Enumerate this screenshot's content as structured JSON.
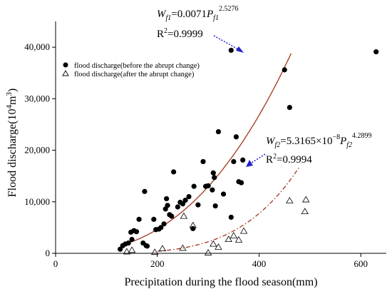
{
  "chart_data": {
    "type": "scatter",
    "xlabel": "Precipitation during the flood season(mm)",
    "ylabel": {
      "base": "Flood discharge(10",
      "exp1": "4",
      "mid": "m",
      "exp2": "3",
      "end": ")"
    },
    "xlim": [
      0,
      650
    ],
    "ylim": [
      0,
      45000
    ],
    "xticks": [
      0,
      200,
      400,
      600
    ],
    "yticks": [
      0,
      10000,
      20000,
      30000,
      40000
    ],
    "ytick_labels": [
      "0",
      "10,000",
      "20,000",
      "30,000",
      "40,000"
    ],
    "grid": false,
    "legend_position": "top-left",
    "series": [
      {
        "name": "flood discharge(before the abrupt change)",
        "marker": "filled-circle",
        "color": "#000000",
        "points": [
          [
            127,
            800
          ],
          [
            132,
            1500
          ],
          [
            137,
            1800
          ],
          [
            143,
            2000
          ],
          [
            148,
            4100
          ],
          [
            150,
            2700
          ],
          [
            154,
            4400
          ],
          [
            159,
            4200
          ],
          [
            164,
            6600
          ],
          [
            172,
            2000
          ],
          [
            175,
            12000
          ],
          [
            178,
            1500
          ],
          [
            180,
            1400
          ],
          [
            193,
            6600
          ],
          [
            197,
            4600
          ],
          [
            203,
            4700
          ],
          [
            207,
            5000
          ],
          [
            213,
            5700
          ],
          [
            216,
            8600
          ],
          [
            218,
            10600
          ],
          [
            220,
            9300
          ],
          [
            224,
            7500
          ],
          [
            228,
            7200
          ],
          [
            232,
            15800
          ],
          [
            240,
            9000
          ],
          [
            245,
            9900
          ],
          [
            250,
            9600
          ],
          [
            255,
            10300
          ],
          [
            262,
            11000
          ],
          [
            270,
            4800
          ],
          [
            272,
            13000
          ],
          [
            280,
            9400
          ],
          [
            290,
            17800
          ],
          [
            295,
            13000
          ],
          [
            300,
            13100
          ],
          [
            308,
            12300
          ],
          [
            310,
            15600
          ],
          [
            312,
            14700
          ],
          [
            314,
            9200
          ],
          [
            320,
            23600
          ],
          [
            330,
            11500
          ],
          [
            345,
            7000
          ],
          [
            350,
            17800
          ],
          [
            355,
            22600
          ],
          [
            360,
            13900
          ],
          [
            365,
            13700
          ],
          [
            368,
            18100
          ],
          [
            345,
            39400
          ],
          [
            450,
            35600
          ],
          [
            460,
            28300
          ],
          [
            630,
            39100
          ]
        ]
      },
      {
        "name": "flood discharge(after the abrupt change)",
        "marker": "open-triangle",
        "color": "#000000",
        "points": [
          [
            140,
            300
          ],
          [
            150,
            600
          ],
          [
            195,
            200
          ],
          [
            210,
            900
          ],
          [
            250,
            1000
          ],
          [
            252,
            7200
          ],
          [
            270,
            5400
          ],
          [
            300,
            100
          ],
          [
            310,
            1800
          ],
          [
            320,
            1200
          ],
          [
            340,
            2700
          ],
          [
            350,
            3400
          ],
          [
            360,
            2600
          ],
          [
            370,
            4300
          ],
          [
            460,
            10200
          ],
          [
            490,
            8100
          ],
          [
            492,
            10400
          ]
        ]
      }
    ],
    "fits": [
      {
        "label": "W_f1",
        "coef": 0.0071,
        "exponent": 2.5276,
        "x_range": [
          128,
          463
        ],
        "color": "#a3341b",
        "dash": "solid",
        "equation": {
          "lhs": "W",
          "lhs_sub": "f1",
          "eq": "=0.0071",
          "var": "P",
          "var_sub": "f1",
          "exp": "2.5276"
        },
        "r2": {
          "base": "R",
          "exp": "2",
          "val": "=0.9999"
        }
      },
      {
        "label": "W_f2",
        "coef": 5.3165e-08,
        "exponent": 4.2899,
        "x_range": [
          200,
          480
        ],
        "color": "#a3341b",
        "dash": "dash-dot",
        "equation": {
          "lhs": "W",
          "lhs_sub": "f2",
          "eq": "=5.3165×10",
          "pow": "−8",
          "var": "P",
          "var_sub": "f2",
          "exp": "4.2899"
        },
        "r2": {
          "base": "R",
          "exp": "2",
          "val": "=0.9994"
        }
      }
    ]
  }
}
